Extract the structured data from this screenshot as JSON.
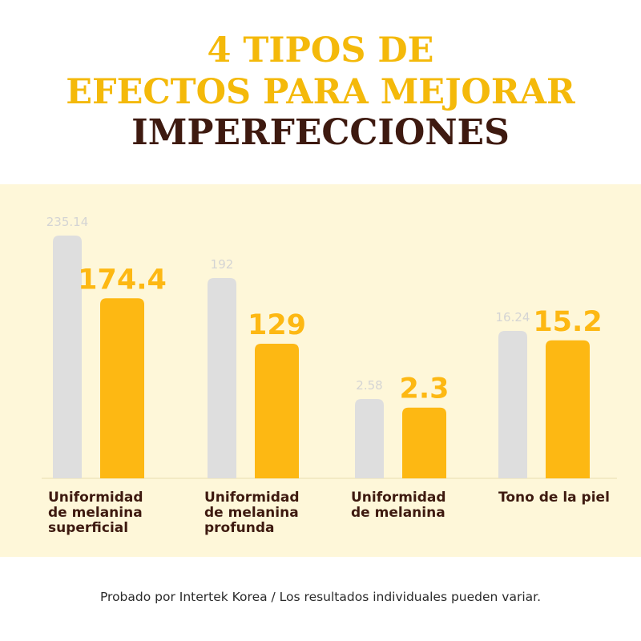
{
  "title": {
    "line1": "4 TIPOS DE",
    "line2": "EFECTOS PARA MEJORAR",
    "line3": "IMPERFECCIONES"
  },
  "colors": {
    "gold": "#F4B90A",
    "brown": "#3E1A10",
    "panel_bg": "#FEF7D9",
    "grey_bar": "#DEDEDE",
    "grey_label": "#D4D4D4",
    "bar_gold": "#FDB813"
  },
  "chart_data": {
    "type": "bar",
    "categories": [
      "Uniformidad de melanina superficial",
      "Uniformidad de melanina profunda",
      "Uniformidad de melanina",
      "Tono de la piel"
    ],
    "category_lines": [
      [
        "Uniformidad",
        "de melanina",
        "superficial"
      ],
      [
        "Uniformidad",
        "de melanina",
        "profunda"
      ],
      [
        "Uniformidad",
        "de melanina"
      ],
      [
        "Tono de la piel"
      ]
    ],
    "series": [
      {
        "values": [
          235.14,
          192,
          2.58,
          16.24
        ],
        "labels": [
          "235.14",
          "192",
          "2.58",
          "16.24"
        ]
      },
      {
        "values": [
          174.4,
          129,
          2.3,
          15.2
        ],
        "labels": [
          "174.4",
          "129",
          "2.3",
          "15.2"
        ]
      }
    ],
    "note": "Each category is drawn on its own independent scale"
  },
  "footnote": "Probado por Intertek Korea / Los resultados individuales pueden variar."
}
